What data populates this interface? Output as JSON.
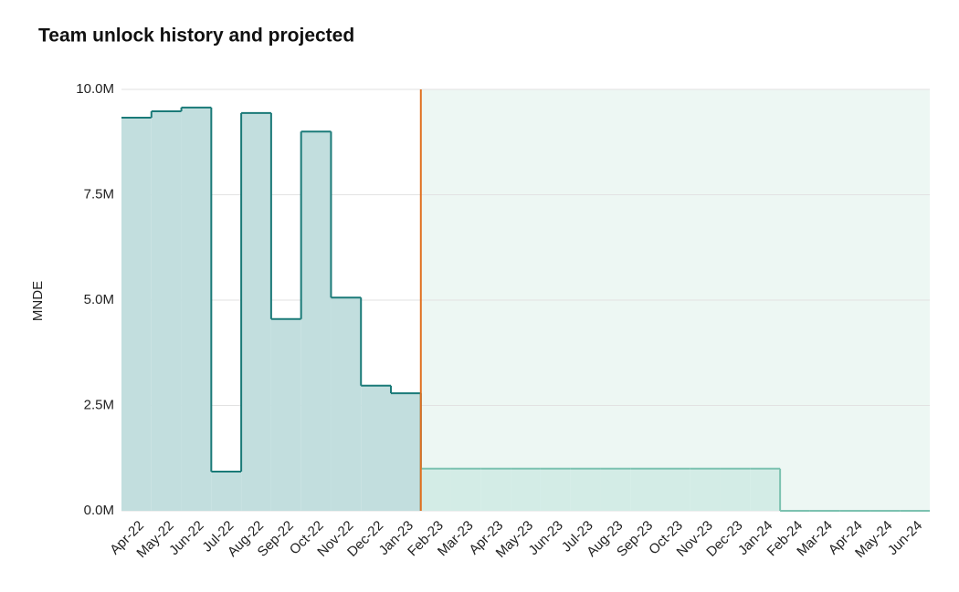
{
  "chart_data": {
    "type": "step-area",
    "title": "Team unlock history and projected",
    "y_label": "MNDE",
    "categories": [
      "Apr-22",
      "May-22",
      "Jun-22",
      "Jul-22",
      "Aug-22",
      "Sep-22",
      "Oct-22",
      "Nov-22",
      "Dec-22",
      "Jan-23",
      "Feb-23",
      "Mar-23",
      "Apr-23",
      "May-23",
      "Jun-23",
      "Jul-23",
      "Aug-23",
      "Sep-23",
      "Oct-23",
      "Nov-23",
      "Dec-23",
      "Jan-24",
      "Feb-24",
      "Mar-24",
      "Apr-24",
      "May-24",
      "Jun-24"
    ],
    "series": [
      {
        "color": "#1a7a78",
        "fill": "#c2dede",
        "values": [
          9.33,
          9.48,
          9.57,
          0.93,
          9.44,
          4.55,
          9.0,
          5.06,
          2.97,
          2.79,
          null,
          null,
          null,
          null,
          null,
          null,
          null,
          null,
          null,
          null,
          null,
          null,
          null,
          null,
          null,
          null,
          null
        ]
      },
      {
        "color": "#7cc2b0",
        "fill": "#d3ece6",
        "values": [
          null,
          null,
          null,
          null,
          null,
          null,
          null,
          null,
          null,
          null,
          1.0,
          1.0,
          1.0,
          1.0,
          1.0,
          1.0,
          1.0,
          1.0,
          1.0,
          1.0,
          1.0,
          1.0,
          0,
          0,
          0,
          0,
          0
        ]
      }
    ],
    "ylim": [
      0,
      10
    ],
    "yticks": [
      {
        "value": 0,
        "label": "0.0M"
      },
      {
        "value": 2.5,
        "label": "2.5M"
      },
      {
        "value": 5,
        "label": "5.0M"
      },
      {
        "value": 7.5,
        "label": "7.5M"
      },
      {
        "value": 10,
        "label": "10.0M"
      }
    ],
    "grid": true
  }
}
